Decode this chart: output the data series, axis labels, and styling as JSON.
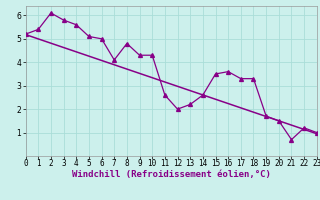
{
  "title": "",
  "xlabel": "Windchill (Refroidissement éolien,°C)",
  "background_color": "#ccf0ec",
  "grid_color": "#aaddd8",
  "line_color": "#880088",
  "hours": [
    0,
    1,
    2,
    3,
    4,
    5,
    6,
    7,
    8,
    9,
    10,
    11,
    12,
    13,
    14,
    15,
    16,
    17,
    18,
    19,
    20,
    21,
    22,
    23
  ],
  "windchill": [
    5.2,
    5.4,
    6.1,
    5.8,
    5.6,
    5.1,
    5.0,
    4.1,
    4.8,
    4.3,
    4.3,
    2.6,
    2.0,
    2.2,
    2.6,
    3.5,
    3.6,
    3.3,
    3.3,
    1.7,
    1.5,
    0.7,
    1.2,
    1.0
  ],
  "trend_start_x": 0,
  "trend_start_y": 5.18,
  "trend_end_x": 23,
  "trend_end_y": 0.95,
  "ylim": [
    0,
    6.4
  ],
  "xlim": [
    0,
    23
  ],
  "yticks": [
    1,
    2,
    3,
    4,
    5,
    6
  ],
  "xticks": [
    0,
    1,
    2,
    3,
    4,
    5,
    6,
    7,
    8,
    9,
    10,
    11,
    12,
    13,
    14,
    15,
    16,
    17,
    18,
    19,
    20,
    21,
    22,
    23
  ],
  "tick_fontsize": 5.5,
  "label_fontsize": 6.5
}
